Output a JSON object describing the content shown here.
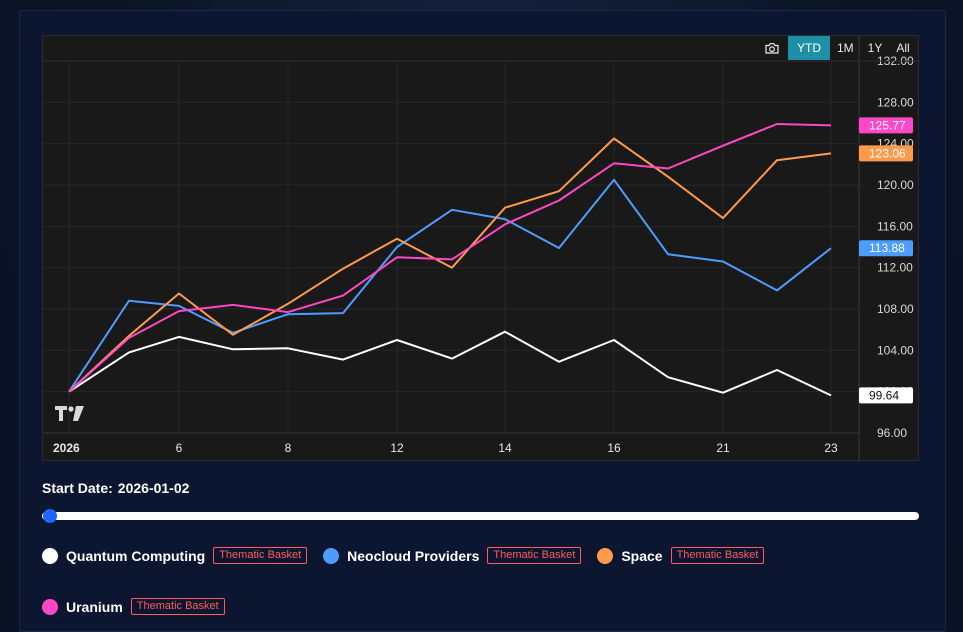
{
  "toolbar": {
    "camera_icon": "camera-icon",
    "ranges": [
      "YTD",
      "1M",
      "1Y",
      "All"
    ],
    "active_range": "YTD"
  },
  "logo_icon": "tradingview-logo",
  "start_date": {
    "label": "Start Date:",
    "value": "2026-01-02"
  },
  "slider": {
    "position": 0
  },
  "legend": [
    {
      "name": "Quantum Computing",
      "badge": "Thematic Basket",
      "color": "#ffffff"
    },
    {
      "name": "Neocloud Providers",
      "badge": "Thematic Basket",
      "color": "#4c9dff"
    },
    {
      "name": "Space",
      "badge": "Thematic Basket",
      "color": "#ff9a4a"
    },
    {
      "name": "Uranium",
      "badge": "Thematic Basket",
      "color": "#ff47c8"
    }
  ],
  "chart_data": {
    "type": "line",
    "title": "",
    "x": [
      "2026-01-02",
      "2026-01-05",
      "2026-01-06",
      "2026-01-07",
      "2026-01-08",
      "2026-01-09",
      "2026-01-12",
      "2026-01-13",
      "2026-01-14",
      "2026-01-15",
      "2026-01-16",
      "2026-01-20",
      "2026-01-21",
      "2026-01-22",
      "2026-01-23"
    ],
    "x_tick_labels": [
      "2026",
      "6",
      "8",
      "12",
      "14",
      "16",
      "21",
      "23"
    ],
    "y_tick_labels": [
      "96.00",
      "100.00",
      "104.00",
      "108.00",
      "112.00",
      "116.00",
      "120.00",
      "124.00",
      "128.00",
      "132.00"
    ],
    "ylim": [
      96,
      132
    ],
    "grid": true,
    "series": [
      {
        "name": "Quantum Computing",
        "color": "#ffffff",
        "last_label": "99.64",
        "values": [
          100,
          103.8,
          105.3,
          104.1,
          104.2,
          103.1,
          105.0,
          103.2,
          105.8,
          102.9,
          105.0,
          101.4,
          99.9,
          102.1,
          99.64
        ]
      },
      {
        "name": "Neocloud Providers",
        "color": "#4c9dff",
        "last_label": "113.88",
        "values": [
          100,
          108.8,
          108.3,
          105.7,
          107.5,
          107.6,
          114.0,
          117.6,
          116.7,
          113.9,
          120.5,
          113.3,
          112.6,
          109.8,
          113.88
        ]
      },
      {
        "name": "Space",
        "color": "#ff9a4a",
        "last_label": "123.06",
        "values": [
          100,
          105.4,
          109.5,
          105.5,
          108.5,
          111.9,
          114.8,
          112.0,
          117.8,
          119.4,
          124.5,
          120.8,
          116.8,
          122.4,
          123.06
        ]
      },
      {
        "name": "Uranium",
        "color": "#ff47c8",
        "last_label": "125.77",
        "values": [
          100,
          105.2,
          107.8,
          108.4,
          107.7,
          109.3,
          113.0,
          112.8,
          116.2,
          118.5,
          122.1,
          121.6,
          123.8,
          125.9,
          125.77
        ]
      }
    ]
  }
}
